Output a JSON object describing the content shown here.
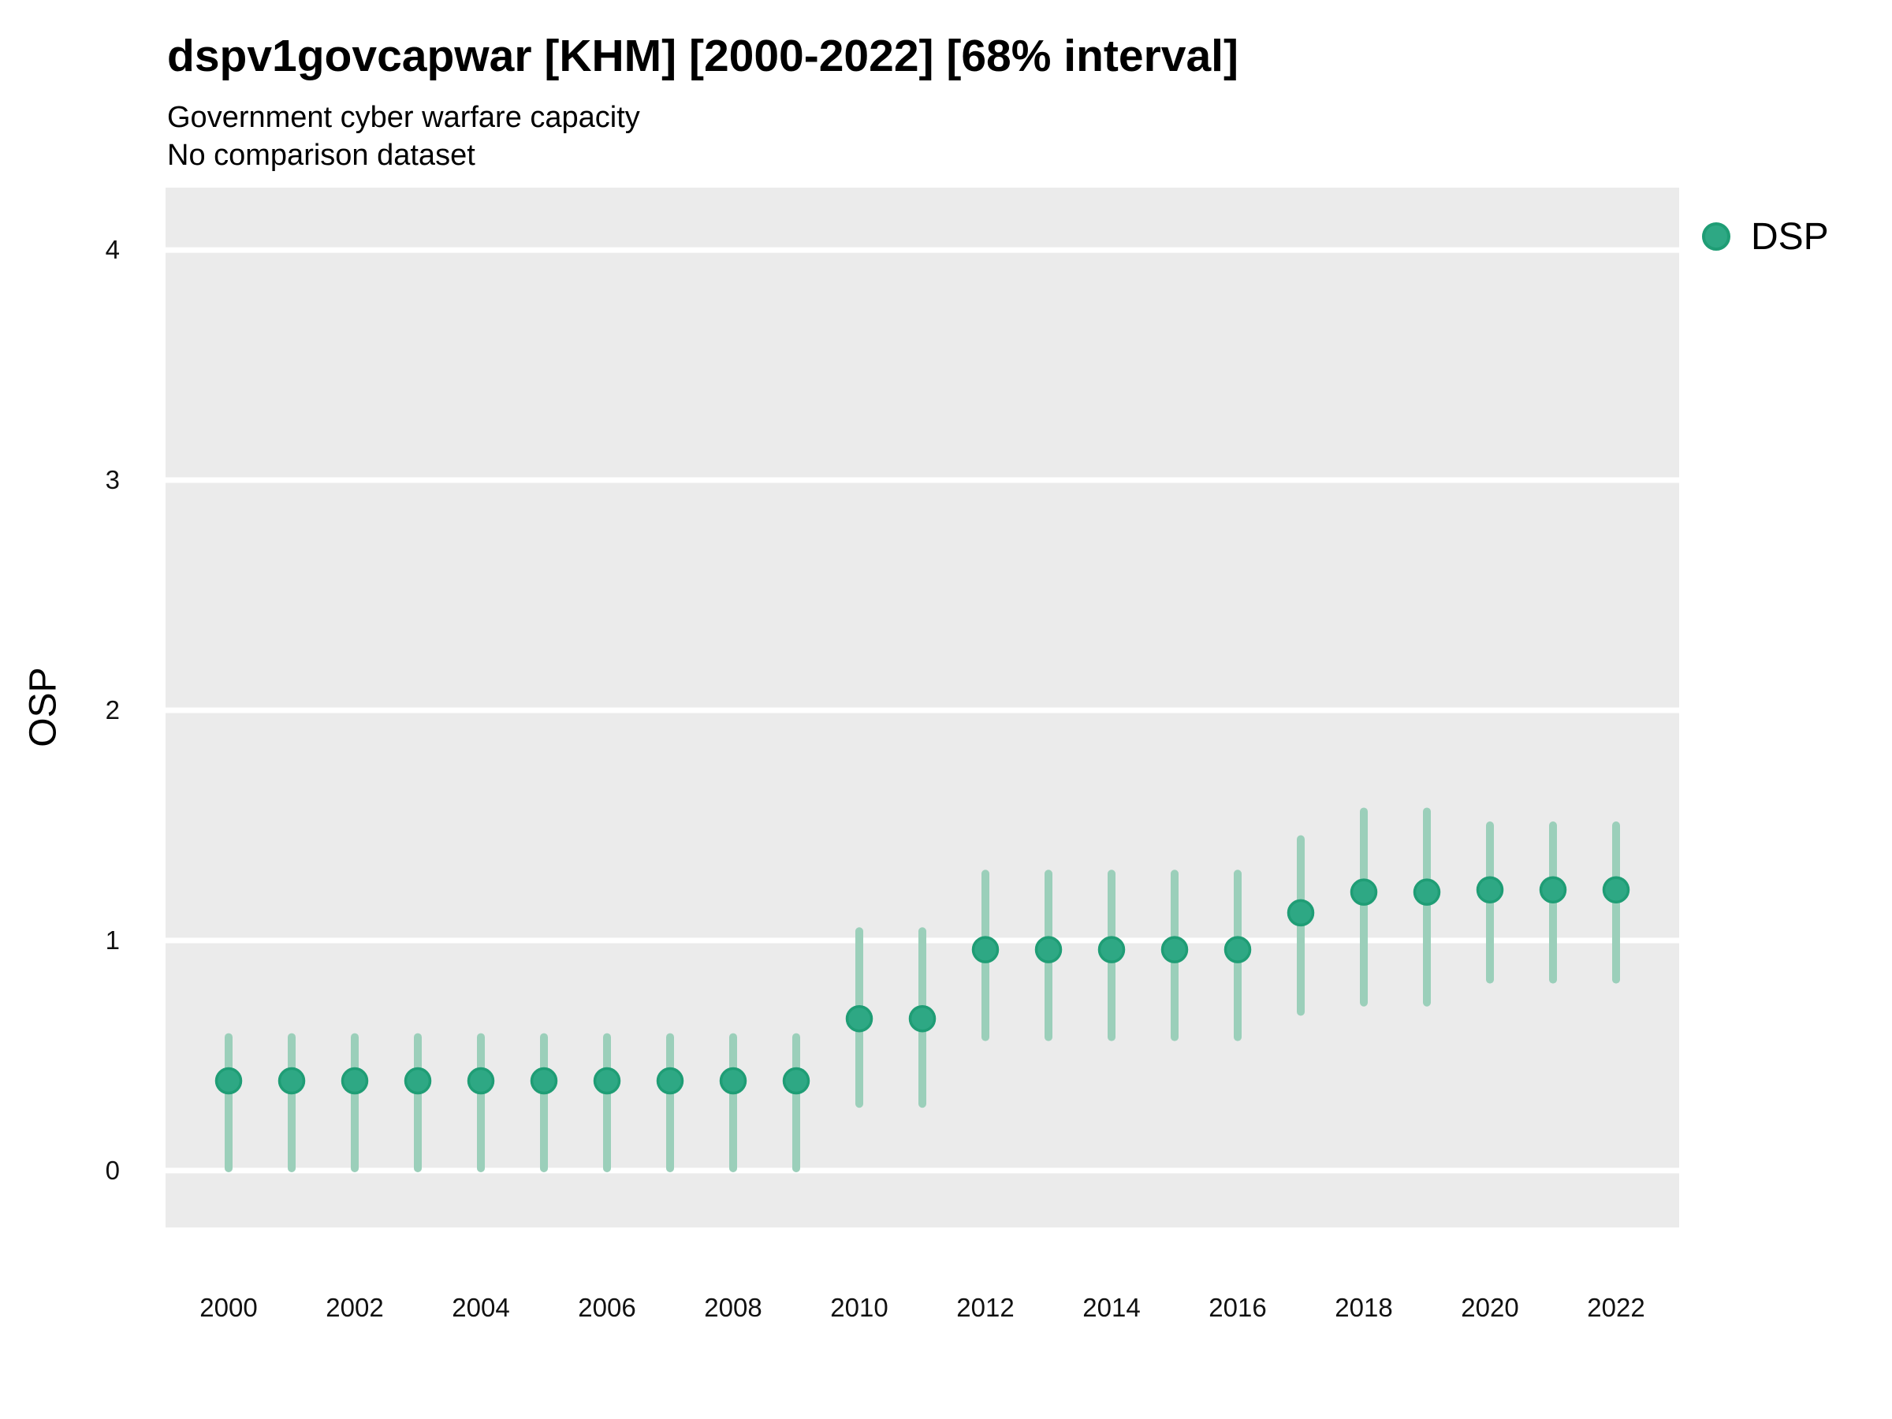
{
  "header": {
    "title": "dspv1govcapwar [KHM] [2000-2022] [68% interval]",
    "subtitle1": "Government cyber warfare capacity",
    "subtitle2": "No comparison dataset"
  },
  "legend": {
    "label": "DSP",
    "position": "right"
  },
  "axes": {
    "y_label": "OSP",
    "x_label": ""
  },
  "colors": {
    "point_fill": "#2EA884",
    "point_stroke": "#1F9D75",
    "interval": "#9BCFBA",
    "panel_bg": "#EBEBEB",
    "gridline": "#FFFFFF",
    "text": "#000000",
    "tick_text": "#111111"
  },
  "chart_data": {
    "type": "scatter",
    "subtype": "pointrange-68pct-interval",
    "title": "dspv1govcapwar [KHM] [2000-2022] [68% interval]",
    "xlabel": "",
    "ylabel": "OSP",
    "x": [
      2000,
      2001,
      2002,
      2003,
      2004,
      2005,
      2006,
      2007,
      2008,
      2009,
      2010,
      2011,
      2012,
      2013,
      2014,
      2015,
      2016,
      2017,
      2018,
      2019,
      2020,
      2021,
      2022
    ],
    "series": [
      {
        "name": "DSP",
        "values": [
          0.39,
          0.39,
          0.39,
          0.39,
          0.39,
          0.39,
          0.39,
          0.39,
          0.39,
          0.39,
          0.66,
          0.66,
          0.96,
          0.96,
          0.96,
          0.96,
          0.96,
          1.12,
          1.21,
          1.21,
          1.22,
          1.22,
          1.22
        ],
        "lower": [
          0.01,
          0.01,
          0.01,
          0.01,
          0.01,
          0.01,
          0.01,
          0.01,
          0.01,
          0.01,
          0.29,
          0.29,
          0.58,
          0.58,
          0.58,
          0.58,
          0.58,
          0.69,
          0.73,
          0.73,
          0.83,
          0.83,
          0.83
        ],
        "upper": [
          0.58,
          0.58,
          0.58,
          0.58,
          0.58,
          0.58,
          0.58,
          0.58,
          0.58,
          0.58,
          1.04,
          1.04,
          1.29,
          1.29,
          1.29,
          1.29,
          1.29,
          1.44,
          1.56,
          1.56,
          1.5,
          1.5,
          1.5
        ]
      }
    ],
    "x_ticks": [
      2000,
      2002,
      2004,
      2006,
      2008,
      2010,
      2012,
      2014,
      2016,
      2018,
      2020,
      2022
    ],
    "y_ticks": [
      0,
      1,
      2,
      3,
      4
    ],
    "xlim": [
      1999,
      2023
    ],
    "ylim": [
      -0.247,
      4.271
    ],
    "grid": "major-horizontal-white",
    "legend_position": "right",
    "legend_entries": [
      "DSP"
    ]
  }
}
